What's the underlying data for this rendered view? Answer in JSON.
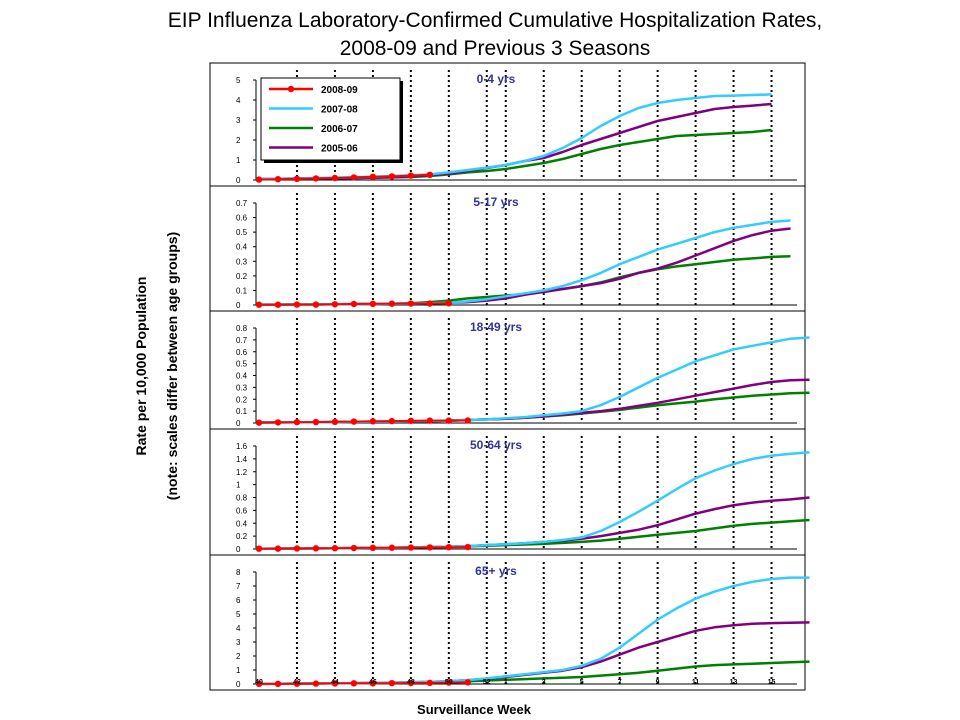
{
  "title_line1": "EIP Influenza Laboratory-Confirmed Cumulative Hospitalization Rates,",
  "title_line2": "2008-09 and Previous 3 Seasons",
  "ylabel_line1": "Rate per 10,000 Population",
  "ylabel_line2": "(note: scales differ between age groups)",
  "xlabel": "Surveillance Week",
  "colors": {
    "2008-09": "#ff0000",
    "2007-08": "#33ccff",
    "2006-07": "#008000",
    "2005-06": "#800080"
  },
  "chart_data": {
    "type": "line",
    "x_tick_labels": [
      "40",
      "42",
      "44",
      "46",
      "48",
      "50",
      "52",
      "1",
      "3",
      "5",
      "7",
      "9",
      "11",
      "13",
      "15"
    ],
    "xlabel": "Surveillance Week",
    "legend": {
      "placement": "top-left of first panel",
      "entries": [
        "2008-09",
        "2007-08",
        "2006-07",
        "2005-06"
      ]
    },
    "grid": "vertical dotted lines at each labeled week",
    "week_order": [
      "40",
      "41",
      "42",
      "43",
      "44",
      "45",
      "46",
      "47",
      "48",
      "49",
      "50",
      "51",
      "52",
      "1",
      "2",
      "3",
      "4",
      "5",
      "6",
      "7",
      "8",
      "9",
      "10",
      "11",
      "12",
      "13",
      "14",
      "15",
      "16"
    ],
    "panels": [
      {
        "title": "0-4 yrs",
        "ylim": [
          0,
          5
        ],
        "yticks": [
          "0",
          "1",
          "2",
          "3",
          "4",
          "5"
        ],
        "series": [
          {
            "name": "2008-09",
            "values": [
              0.02,
              0.04,
              0.06,
              0.08,
              0.1,
              0.13,
              0.16,
              0.18,
              0.22,
              0.26
            ]
          },
          {
            "name": "2007-08",
            "values": [
              0.05,
              0.07,
              0.08,
              0.1,
              0.12,
              0.14,
              0.16,
              0.2,
              0.24,
              0.28,
              0.38,
              0.5,
              0.62,
              0.75,
              0.95,
              1.2,
              1.6,
              2.1,
              2.7,
              3.2,
              3.6,
              3.85,
              4.0,
              4.1,
              4.2,
              4.22,
              4.25,
              4.28
            ]
          },
          {
            "name": "2006-07",
            "values": [
              0.05,
              0.06,
              0.07,
              0.08,
              0.09,
              0.1,
              0.11,
              0.13,
              0.15,
              0.2,
              0.28,
              0.38,
              0.45,
              0.55,
              0.7,
              0.85,
              1.05,
              1.3,
              1.55,
              1.75,
              1.9,
              2.05,
              2.2,
              2.25,
              2.3,
              2.35,
              2.4,
              2.5
            ]
          },
          {
            "name": "2005-06",
            "values": [
              0.05,
              0.06,
              0.07,
              0.08,
              0.09,
              0.1,
              0.12,
              0.14,
              0.18,
              0.24,
              0.32,
              0.45,
              0.6,
              0.75,
              0.95,
              1.1,
              1.4,
              1.75,
              2.05,
              2.35,
              2.65,
              2.95,
              3.15,
              3.35,
              3.55,
              3.65,
              3.72,
              3.8
            ]
          }
        ]
      },
      {
        "title": "5-17 yrs",
        "ylim": [
          0,
          0.7
        ],
        "yticks": [
          "0",
          "0.1",
          "0.2",
          "0.3",
          "0.4",
          "0.5",
          "0.6",
          "0.7"
        ],
        "series": [
          {
            "name": "2008-09",
            "values": [
              0.002,
              0.002,
              0.003,
              0.003,
              0.005,
              0.007,
              0.008,
              0.009,
              0.01,
              0.01,
              0.012
            ]
          },
          {
            "name": "2007-08",
            "values": [
              0.003,
              0.003,
              0.004,
              0.004,
              0.005,
              0.006,
              0.007,
              0.008,
              0.01,
              0.012,
              0.015,
              0.025,
              0.04,
              0.06,
              0.08,
              0.1,
              0.13,
              0.17,
              0.22,
              0.28,
              0.33,
              0.38,
              0.42,
              0.46,
              0.5,
              0.53,
              0.55,
              0.57,
              0.58
            ]
          },
          {
            "name": "2006-07",
            "values": [
              0.003,
              0.003,
              0.004,
              0.004,
              0.005,
              0.006,
              0.007,
              0.008,
              0.012,
              0.02,
              0.03,
              0.045,
              0.055,
              0.065,
              0.075,
              0.09,
              0.11,
              0.13,
              0.155,
              0.19,
              0.22,
              0.245,
              0.265,
              0.28,
              0.295,
              0.31,
              0.32,
              0.33,
              0.335
            ]
          },
          {
            "name": "2005-06",
            "values": [
              0.003,
              0.003,
              0.004,
              0.004,
              0.005,
              0.006,
              0.007,
              0.008,
              0.01,
              0.012,
              0.015,
              0.02,
              0.03,
              0.045,
              0.07,
              0.09,
              0.11,
              0.13,
              0.15,
              0.18,
              0.22,
              0.25,
              0.29,
              0.34,
              0.39,
              0.44,
              0.48,
              0.51,
              0.525
            ]
          }
        ]
      },
      {
        "title": "18-49 yrs",
        "ylim": [
          0,
          0.8
        ],
        "yticks": [
          "0",
          "0.1",
          "0.2",
          "0.3",
          "0.4",
          "0.5",
          "0.6",
          "0.7",
          "0.8"
        ],
        "series": [
          {
            "name": "2008-09",
            "values": [
              0.003,
              0.005,
              0.007,
              0.008,
              0.01,
              0.012,
              0.014,
              0.016,
              0.018,
              0.02,
              0.02,
              0.021
            ]
          },
          {
            "name": "2007-08",
            "values": [
              0.004,
              0.005,
              0.006,
              0.007,
              0.008,
              0.01,
              0.012,
              0.013,
              0.015,
              0.017,
              0.02,
              0.025,
              0.03,
              0.04,
              0.05,
              0.065,
              0.08,
              0.1,
              0.15,
              0.22,
              0.3,
              0.38,
              0.45,
              0.52,
              0.57,
              0.62,
              0.65,
              0.68,
              0.71,
              0.72
            ]
          },
          {
            "name": "2006-07",
            "values": [
              0.004,
              0.005,
              0.006,
              0.007,
              0.008,
              0.009,
              0.01,
              0.012,
              0.014,
              0.016,
              0.02,
              0.025,
              0.03,
              0.035,
              0.045,
              0.055,
              0.065,
              0.08,
              0.095,
              0.11,
              0.13,
              0.15,
              0.165,
              0.18,
              0.2,
              0.215,
              0.23,
              0.24,
              0.25,
              0.255
            ]
          },
          {
            "name": "2005-06",
            "values": [
              0.004,
              0.005,
              0.006,
              0.007,
              0.008,
              0.009,
              0.01,
              0.012,
              0.014,
              0.016,
              0.02,
              0.025,
              0.03,
              0.035,
              0.045,
              0.055,
              0.07,
              0.085,
              0.1,
              0.12,
              0.145,
              0.17,
              0.2,
              0.23,
              0.26,
              0.29,
              0.32,
              0.345,
              0.36,
              0.365
            ]
          }
        ]
      },
      {
        "title": "50-64 yrs",
        "ylim": [
          0,
          1.6
        ],
        "yticks": [
          "0",
          "0.2",
          "0.4",
          "0.6",
          "0.8",
          "1",
          "1.2",
          "1.4",
          "1.6"
        ],
        "series": [
          {
            "name": "2008-09",
            "values": [
              0.005,
              0.006,
              0.008,
              0.01,
              0.012,
              0.015,
              0.018,
              0.02,
              0.022,
              0.025,
              0.028,
              0.03
            ]
          },
          {
            "name": "2007-08",
            "values": [
              0.005,
              0.006,
              0.008,
              0.01,
              0.012,
              0.015,
              0.018,
              0.02,
              0.025,
              0.03,
              0.035,
              0.045,
              0.06,
              0.075,
              0.09,
              0.11,
              0.14,
              0.18,
              0.28,
              0.42,
              0.58,
              0.75,
              0.93,
              1.1,
              1.22,
              1.32,
              1.4,
              1.45,
              1.48,
              1.5
            ]
          },
          {
            "name": "2006-07",
            "values": [
              0.005,
              0.006,
              0.008,
              0.01,
              0.012,
              0.015,
              0.018,
              0.02,
              0.025,
              0.03,
              0.035,
              0.04,
              0.05,
              0.06,
              0.07,
              0.08,
              0.095,
              0.11,
              0.13,
              0.16,
              0.19,
              0.22,
              0.25,
              0.28,
              0.32,
              0.36,
              0.39,
              0.41,
              0.43,
              0.45
            ]
          },
          {
            "name": "2005-06",
            "values": [
              0.005,
              0.006,
              0.008,
              0.01,
              0.012,
              0.015,
              0.018,
              0.02,
              0.025,
              0.03,
              0.035,
              0.045,
              0.06,
              0.075,
              0.09,
              0.11,
              0.13,
              0.16,
              0.2,
              0.25,
              0.3,
              0.37,
              0.46,
              0.55,
              0.62,
              0.68,
              0.72,
              0.75,
              0.77,
              0.8
            ]
          }
        ]
      },
      {
        "title": "65+ yrs",
        "ylim": [
          0,
          8
        ],
        "yticks": [
          "0",
          "1",
          "2",
          "3",
          "4",
          "5",
          "6",
          "7",
          "8"
        ],
        "series": [
          {
            "name": "2008-09",
            "values": [
              0.01,
              0.01,
              0.02,
              0.03,
              0.04,
              0.05,
              0.05,
              0.06,
              0.07,
              0.08,
              0.1,
              0.12
            ]
          },
          {
            "name": "2007-08",
            "values": [
              0.01,
              0.02,
              0.03,
              0.04,
              0.05,
              0.06,
              0.08,
              0.1,
              0.12,
              0.15,
              0.2,
              0.28,
              0.4,
              0.55,
              0.7,
              0.85,
              1.0,
              1.3,
              1.8,
              2.6,
              3.6,
              4.6,
              5.4,
              6.1,
              6.6,
              7.0,
              7.3,
              7.5,
              7.6,
              7.6
            ]
          },
          {
            "name": "2006-07",
            "values": [
              0.01,
              0.02,
              0.03,
              0.04,
              0.05,
              0.06,
              0.07,
              0.08,
              0.1,
              0.12,
              0.15,
              0.2,
              0.25,
              0.3,
              0.35,
              0.4,
              0.45,
              0.5,
              0.6,
              0.7,
              0.8,
              0.95,
              1.1,
              1.25,
              1.35,
              1.4,
              1.45,
              1.5,
              1.55,
              1.6
            ]
          },
          {
            "name": "2005-06",
            "values": [
              0.01,
              0.02,
              0.03,
              0.04,
              0.05,
              0.06,
              0.08,
              0.1,
              0.12,
              0.15,
              0.2,
              0.28,
              0.38,
              0.5,
              0.65,
              0.8,
              0.95,
              1.2,
              1.6,
              2.1,
              2.6,
              3.0,
              3.4,
              3.8,
              4.05,
              4.2,
              4.3,
              4.35,
              4.38,
              4.4
            ]
          }
        ]
      }
    ]
  }
}
